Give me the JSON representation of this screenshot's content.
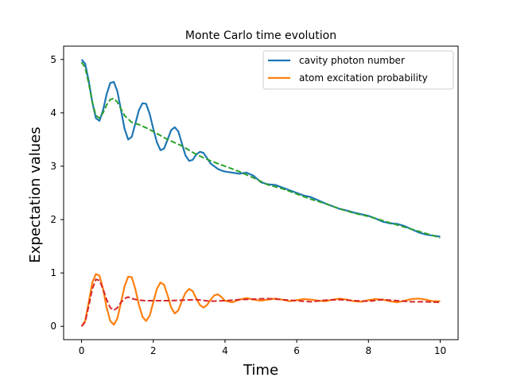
{
  "chart_data": {
    "type": "line",
    "title": "Monte Carlo time evolution",
    "xlabel": "Time",
    "ylabel": "Expectation values",
    "xlim": [
      -0.5,
      10.5
    ],
    "ylim": [
      -0.25,
      5.25
    ],
    "x_ticks": [
      0,
      2,
      4,
      6,
      8,
      10
    ],
    "y_ticks": [
      0,
      1,
      2,
      3,
      4,
      5
    ],
    "x_tick_labels": [
      "0",
      "2",
      "4",
      "6",
      "8",
      "10"
    ],
    "y_tick_labels": [
      "0",
      "1",
      "2",
      "3",
      "4",
      "5"
    ],
    "grid": false,
    "legend_placement": "top-right",
    "series": [
      {
        "name": "cavity photon number",
        "color": "#1f77b4",
        "style": "solid",
        "x": [
          0,
          0.1,
          0.2,
          0.3,
          0.4,
          0.5,
          0.6,
          0.7,
          0.8,
          0.9,
          1.0,
          1.1,
          1.2,
          1.3,
          1.4,
          1.5,
          1.6,
          1.7,
          1.8,
          1.9,
          2.0,
          2.1,
          2.2,
          2.3,
          2.4,
          2.5,
          2.6,
          2.7,
          2.8,
          2.9,
          3.0,
          3.1,
          3.2,
          3.3,
          3.4,
          3.5,
          3.6,
          3.7,
          3.8,
          3.9,
          4.0,
          4.2,
          4.4,
          4.6,
          4.8,
          5.0,
          5.2,
          5.4,
          5.6,
          5.8,
          6.0,
          6.2,
          6.4,
          6.6,
          6.8,
          7.0,
          7.2,
          7.4,
          7.6,
          7.8,
          8.0,
          8.2,
          8.4,
          8.6,
          8.8,
          9.0,
          9.2,
          9.4,
          9.6,
          9.8,
          10.0
        ],
        "y": [
          5.0,
          4.92,
          4.6,
          4.2,
          3.9,
          3.85,
          4.05,
          4.35,
          4.56,
          4.58,
          4.4,
          4.05,
          3.7,
          3.5,
          3.55,
          3.8,
          4.05,
          4.18,
          4.17,
          3.98,
          3.7,
          3.45,
          3.3,
          3.33,
          3.5,
          3.68,
          3.73,
          3.65,
          3.42,
          3.2,
          3.1,
          3.12,
          3.22,
          3.27,
          3.25,
          3.15,
          3.05,
          3.0,
          2.95,
          2.92,
          2.9,
          2.88,
          2.86,
          2.88,
          2.82,
          2.7,
          2.66,
          2.65,
          2.6,
          2.55,
          2.5,
          2.45,
          2.42,
          2.36,
          2.3,
          2.25,
          2.2,
          2.17,
          2.13,
          2.1,
          2.07,
          2.02,
          1.96,
          1.93,
          1.92,
          1.88,
          1.82,
          1.76,
          1.72,
          1.7,
          1.68
        ]
      },
      {
        "name": "atom excitation probability",
        "color": "#ff7f0e",
        "style": "solid",
        "x": [
          0,
          0.1,
          0.2,
          0.3,
          0.4,
          0.5,
          0.6,
          0.7,
          0.8,
          0.9,
          1.0,
          1.1,
          1.2,
          1.3,
          1.4,
          1.5,
          1.6,
          1.7,
          1.8,
          1.9,
          2.0,
          2.1,
          2.2,
          2.3,
          2.4,
          2.5,
          2.6,
          2.7,
          2.8,
          2.9,
          3.0,
          3.1,
          3.2,
          3.3,
          3.4,
          3.5,
          3.6,
          3.7,
          3.8,
          3.9,
          4.0,
          4.2,
          4.4,
          4.6,
          4.8,
          5.0,
          5.2,
          5.4,
          5.6,
          5.8,
          6.0,
          6.2,
          6.4,
          6.6,
          6.8,
          7.0,
          7.2,
          7.4,
          7.6,
          7.8,
          8.0,
          8.2,
          8.4,
          8.6,
          8.8,
          9.0,
          9.2,
          9.4,
          9.6,
          9.8,
          10.0
        ],
        "y": [
          0.0,
          0.1,
          0.45,
          0.82,
          0.98,
          0.95,
          0.7,
          0.35,
          0.1,
          0.03,
          0.15,
          0.45,
          0.75,
          0.93,
          0.92,
          0.7,
          0.4,
          0.18,
          0.1,
          0.2,
          0.45,
          0.7,
          0.82,
          0.78,
          0.58,
          0.35,
          0.24,
          0.3,
          0.48,
          0.63,
          0.7,
          0.66,
          0.52,
          0.4,
          0.35,
          0.4,
          0.5,
          0.58,
          0.6,
          0.55,
          0.48,
          0.45,
          0.5,
          0.53,
          0.5,
          0.48,
          0.5,
          0.52,
          0.5,
          0.47,
          0.49,
          0.51,
          0.5,
          0.48,
          0.47,
          0.5,
          0.52,
          0.5,
          0.47,
          0.46,
          0.49,
          0.51,
          0.5,
          0.47,
          0.45,
          0.48,
          0.51,
          0.52,
          0.5,
          0.47,
          0.47
        ]
      },
      {
        "color": "#2ca02c",
        "style": "dashed",
        "x": [
          0,
          0.1,
          0.2,
          0.3,
          0.4,
          0.5,
          0.6,
          0.7,
          0.8,
          0.9,
          1.0,
          1.2,
          1.4,
          1.6,
          1.8,
          2.0,
          2.4,
          2.8,
          3.2,
          3.6,
          4.0,
          4.4,
          4.8,
          5.2,
          5.6,
          6.0,
          6.4,
          6.8,
          7.2,
          7.6,
          8.0,
          8.4,
          8.8,
          9.2,
          9.6,
          10.0
        ],
        "y": [
          4.95,
          4.85,
          4.55,
          4.2,
          3.95,
          3.9,
          4.0,
          4.15,
          4.25,
          4.27,
          4.2,
          3.95,
          3.82,
          3.78,
          3.72,
          3.65,
          3.5,
          3.38,
          3.22,
          3.1,
          3.0,
          2.9,
          2.78,
          2.65,
          2.58,
          2.48,
          2.38,
          2.3,
          2.2,
          2.12,
          2.06,
          1.98,
          1.9,
          1.82,
          1.74,
          1.66
        ]
      },
      {
        "color": "#d62728",
        "style": "dashed",
        "x": [
          0,
          0.1,
          0.2,
          0.3,
          0.4,
          0.5,
          0.6,
          0.7,
          0.8,
          0.9,
          1.0,
          1.1,
          1.2,
          1.3,
          1.4,
          1.6,
          1.8,
          2.0,
          2.4,
          2.8,
          3.2,
          3.6,
          4.0,
          4.4,
          4.8,
          5.2,
          5.6,
          6.0,
          6.4,
          6.8,
          7.2,
          7.6,
          8.0,
          8.4,
          8.8,
          9.2,
          9.6,
          10.0
        ],
        "y": [
          0.0,
          0.08,
          0.38,
          0.7,
          0.88,
          0.86,
          0.7,
          0.5,
          0.35,
          0.3,
          0.35,
          0.45,
          0.52,
          0.55,
          0.52,
          0.49,
          0.48,
          0.48,
          0.48,
          0.49,
          0.5,
          0.47,
          0.48,
          0.5,
          0.51,
          0.52,
          0.5,
          0.48,
          0.46,
          0.49,
          0.5,
          0.48,
          0.47,
          0.5,
          0.48,
          0.46,
          0.46,
          0.45
        ]
      }
    ]
  }
}
